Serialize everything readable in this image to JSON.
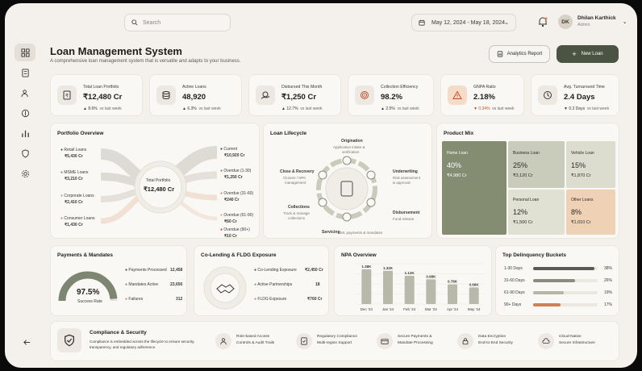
{
  "search": {
    "placeholder": "Search"
  },
  "date_range": "May 12, 2024 - May 18, 2024",
  "user": {
    "initials": "DK",
    "name": "Dhilan Karthick",
    "role": "Admin"
  },
  "header": {
    "title": "Loan Management System",
    "subtitle": "A comprehensive loan management system that is versatile and adapts to your business.",
    "analytics_btn": "Analytics Report",
    "new_loan_btn": "New Loan"
  },
  "kpis": [
    {
      "label": "Total Loan Portfolio",
      "value": "₹12,480 Cr",
      "change": "▲ 8.6%",
      "period": "vs last week",
      "icon": "document-rupee-icon"
    },
    {
      "label": "Active Loans",
      "value": "48,920",
      "change": "▲ 6.3%",
      "period": "vs last week",
      "icon": "stack-coins-icon"
    },
    {
      "label": "Disbursed This Month",
      "value": "₹1,250 Cr",
      "change": "▲ 12.7%",
      "period": "vs last week",
      "icon": "hand-coins-icon"
    },
    {
      "label": "Collection Efficiency",
      "value": "98.2%",
      "change": "▲ 2.5%",
      "period": "vs last week",
      "icon": "target-icon"
    },
    {
      "label": "GNPA Ratio",
      "value": "2.18%",
      "change": "▼ 0.34%",
      "period": "vs last week",
      "icon": "warning-icon"
    },
    {
      "label": "Avg. Turnaround Time",
      "value": "2.4 Days",
      "change": "▼ 0.3 Days",
      "period": "vs last week",
      "icon": "clock-icon"
    }
  ],
  "portfolio": {
    "title": "Portfolio Overview",
    "center_label": "Total Portfolio",
    "center_value": "₹12,480 Cr",
    "left": [
      {
        "label": "Retail Loans",
        "value": "₹5,430 Cr"
      },
      {
        "label": "MSME Loans",
        "value": "₹3,210 Cr"
      },
      {
        "label": "Corporate Loans",
        "value": "₹2,410 Cr"
      },
      {
        "label": "Consumer Loans",
        "value": "₹1,430 Cr"
      }
    ],
    "right": [
      {
        "label": "Current",
        "value": "₹10,920 Cr"
      },
      {
        "label": "Overdue (1-30)",
        "value": "₹1,250 Cr"
      },
      {
        "label": "Overdue (31-60)",
        "value": "₹240 Cr"
      },
      {
        "label": "Overdue (61-90)",
        "value": "₹60 Cr"
      },
      {
        "label": "Overdue (90+)",
        "value": "₹10 Cr"
      }
    ]
  },
  "lifecycle": {
    "title": "Loan Lifecycle",
    "stages": [
      {
        "name": "Origination",
        "desc1": "Application intake &",
        "desc2": "verification"
      },
      {
        "name": "Underwriting",
        "desc1": "Risk assessment",
        "desc2": "& approval"
      },
      {
        "name": "Disbursement",
        "desc1": "Fund release",
        "desc2": ""
      },
      {
        "name": "Servicing",
        "desc1": "EMI, payments & mandates",
        "desc2": ""
      },
      {
        "name": "Collections",
        "desc1": "Track & manage",
        "desc2": "collections"
      },
      {
        "name": "Close & Recovery",
        "desc1": "Closure / NPA",
        "desc2": "management"
      }
    ]
  },
  "product_mix": {
    "title": "Product Mix",
    "items": [
      {
        "name": "Home Loan",
        "pct": "40%",
        "value": "₹4,980 Cr",
        "color": "#848c72"
      },
      {
        "name": "Business Loan",
        "pct": "25%",
        "value": "₹3,120 Cr",
        "color": "#c9cbbb"
      },
      {
        "name": "Vehicle Loan",
        "pct": "15%",
        "value": "₹1,870 Cr",
        "color": "#dcdccf"
      },
      {
        "name": "Personal Loan",
        "pct": "12%",
        "value": "₹1,500 Cr",
        "color": "#e0e0d3"
      },
      {
        "name": "Other Loans",
        "pct": "8%",
        "value": "₹1,010 Cr",
        "color": "#efd2b6"
      }
    ]
  },
  "payments": {
    "title": "Payments & Mandates",
    "rate": "97.5%",
    "rate_fraction": 0.975,
    "rate_label": "Success Rate",
    "rows": [
      {
        "label": "Payments Processed",
        "value": "12,458",
        "color": "#4a4a44"
      },
      {
        "label": "Mandates Active",
        "value": "23,650",
        "color": "#7d8670"
      },
      {
        "label": "Failures",
        "value": "312",
        "color": "#d7865a"
      }
    ]
  },
  "colending": {
    "title": "Co-Lending & FLDG Exposure",
    "rows": [
      {
        "label": "Co-Lending Exposure",
        "value": "₹2,450 Cr",
        "color": "#4a4a44"
      },
      {
        "label": "Active Partnerships",
        "value": "18",
        "color": "#8a8a80"
      },
      {
        "label": "FLDG Exposure",
        "value": "₹760 Cr",
        "color": "#d7865a"
      }
    ]
  },
  "npa": {
    "title": "NPA Overview"
  },
  "chart_data": {
    "type": "bar",
    "title": "NPA Overview",
    "categories": [
      "Dec '23",
      "Jan '24",
      "Feb '24",
      "Mar '24",
      "Apr '24",
      "May '24"
    ],
    "values": [
      1.38,
      1.32,
      1.12,
      0.98,
      0.78,
      0.66
    ],
    "labels": [
      "1.38K",
      "1.32K",
      "1.12K",
      "0.98K",
      "0.78K",
      "0.66K"
    ],
    "ylim": [
      0,
      1.6
    ],
    "grid": true
  },
  "delinquency": {
    "title": "Top Delinquency Buckets",
    "rows": [
      {
        "label": "1-30 Days",
        "pct": "38%",
        "fraction": 0.38,
        "color": "#5a5a52"
      },
      {
        "label": "31-60 Days",
        "pct": "26%",
        "fraction": 0.26,
        "color": "#8a8d7d"
      },
      {
        "label": "61-90 Days",
        "pct": "19%",
        "fraction": 0.19,
        "color": "#b4b6a8"
      },
      {
        "label": "90+ Days",
        "pct": "17%",
        "fraction": 0.17,
        "color": "#d08055"
      }
    ]
  },
  "compliance": {
    "title": "Compliance & Security",
    "desc1": "Compliance is embedded across the lifecycle to ensure security,",
    "desc2": "transparency, and regulatory adherence.",
    "items": [
      {
        "t1": "Role-based Access",
        "t2": "Controls & Audit Trails",
        "icon": "user-shield-icon"
      },
      {
        "t1": "Regulatory Compliance",
        "t2": "Multi-region Support",
        "icon": "document-check-icon"
      },
      {
        "t1": "Secure Payments &",
        "t2": "Mandate Processing",
        "icon": "card-icon"
      },
      {
        "t1": "Data Encryption",
        "t2": "End-to-End Security",
        "icon": "lock-icon"
      },
      {
        "t1": "Cloud-Native",
        "t2": "Secure Infrastructure",
        "icon": "cloud-icon"
      }
    ]
  }
}
